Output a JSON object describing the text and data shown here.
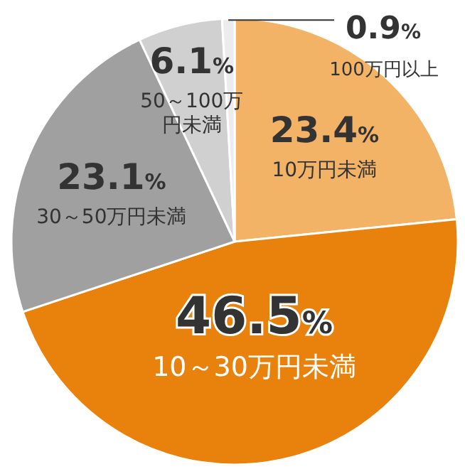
{
  "chart_data": {
    "type": "pie",
    "categories": [
      "10万円未満",
      "10～30万円未満",
      "30～50万円未満",
      "50～100万円未満",
      "100万円以上"
    ],
    "values": [
      23.4,
      46.5,
      23.1,
      6.1,
      0.9
    ],
    "colors": [
      "#f2b366",
      "#e8820c",
      "#a0a0a0",
      "#d0d0d0",
      "#ececec"
    ],
    "value_labels": [
      "23.4%",
      "46.5%",
      "23.1%",
      "6.1%",
      "0.9%"
    ]
  }
}
